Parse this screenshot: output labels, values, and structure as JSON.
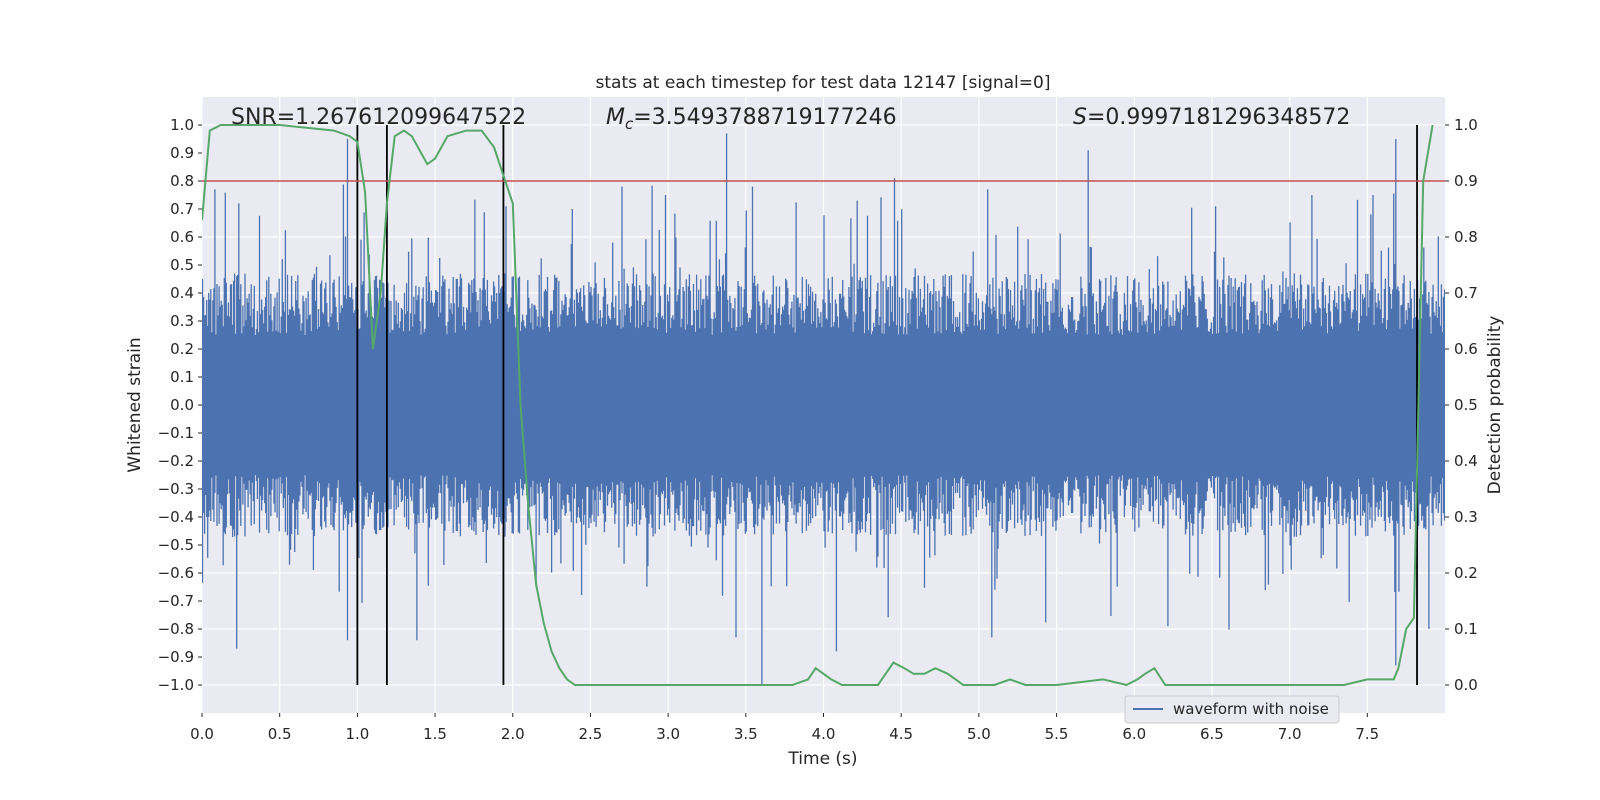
{
  "chart_data": {
    "type": "line",
    "title": "stats at each timestep for test data 12147 [signal=0]",
    "xlabel": "Time (s)",
    "ylabel_left": "Whitened strain",
    "ylabel_right": "Detection probability",
    "xlim": [
      0,
      8
    ],
    "ylim_left": [
      -1.1,
      1.1
    ],
    "ylim_right": [
      -0.05,
      1.05
    ],
    "grid": true,
    "x_ticks": [
      0.0,
      0.5,
      1.0,
      1.5,
      2.0,
      2.5,
      3.0,
      3.5,
      4.0,
      4.5,
      5.0,
      5.5,
      6.0,
      6.5,
      7.0,
      7.5
    ],
    "x_tick_labels": [
      "0.0",
      "0.5",
      "1.0",
      "1.5",
      "2.0",
      "2.5",
      "3.0",
      "3.5",
      "4.0",
      "4.5",
      "5.0",
      "5.5",
      "6.0",
      "6.5",
      "7.0",
      "7.5"
    ],
    "y_left_ticks": [
      1.0,
      0.9,
      0.8,
      0.7,
      0.6,
      0.5,
      0.4,
      0.3,
      0.2,
      0.1,
      0.0,
      -0.1,
      -0.2,
      -0.3,
      -0.4,
      -0.5,
      -0.6,
      -0.7,
      -0.8,
      -0.9,
      -1.0
    ],
    "y_left_tick_labels": [
      "1.0",
      "0.9",
      "0.8",
      "0.7",
      "0.6",
      "0.5",
      "0.4",
      "0.3",
      "0.2",
      "0.1",
      "0.0",
      "−0.1",
      "−0.2",
      "−0.3",
      "−0.4",
      "−0.5",
      "−0.6",
      "−0.7",
      "−0.8",
      "−0.9",
      "−1.0"
    ],
    "y_right_ticks": [
      1.0,
      0.9,
      0.8,
      0.7,
      0.6,
      0.5,
      0.4,
      0.3,
      0.2,
      0.1,
      0.0
    ],
    "y_right_tick_labels": [
      "1.0",
      "0.9",
      "0.8",
      "0.7",
      "0.6",
      "0.5",
      "0.4",
      "0.3",
      "0.2",
      "0.1",
      "0.0"
    ],
    "annotations": {
      "snr": "SNR=1.267612099647522",
      "mc_symbol": "M",
      "mc_subscript": "c",
      "mc_value": "=3.5493788719177246",
      "s_symbol": "S",
      "s_value": "=0.9997181296348572"
    },
    "threshold": {
      "value": 0.9,
      "axis": "right",
      "color": "#c44e52"
    },
    "vertical_markers": [
      1.0,
      1.19,
      1.94,
      7.82
    ],
    "waveform": {
      "name": "waveform with noise",
      "color": "#4c72b0",
      "n_samples": 1200,
      "typical_amplitude": 0.25,
      "max": 0.97,
      "min": -1.0,
      "peaks": [
        {
          "t": 0.08,
          "v": 0.77
        },
        {
          "t": 0.23,
          "v": 0.72
        },
        {
          "t": 0.93,
          "v": 0.95
        },
        {
          "t": 1.95,
          "v": 0.71
        },
        {
          "t": 2.38,
          "v": 0.7
        },
        {
          "t": 2.7,
          "v": 0.78
        },
        {
          "t": 2.98,
          "v": 0.75
        },
        {
          "t": 3.37,
          "v": 0.97
        },
        {
          "t": 3.54,
          "v": 0.78
        },
        {
          "t": 4.21,
          "v": 0.73
        },
        {
          "t": 4.45,
          "v": 0.81
        },
        {
          "t": 5.05,
          "v": 0.77
        },
        {
          "t": 5.7,
          "v": 0.91
        },
        {
          "t": 6.52,
          "v": 0.71
        },
        {
          "t": 7.14,
          "v": 0.75
        },
        {
          "t": 7.53,
          "v": 0.75
        },
        {
          "t": 7.68,
          "v": 0.95
        }
      ],
      "troughs": [
        {
          "t": 0.22,
          "v": -0.87
        },
        {
          "t": 0.93,
          "v": -0.84
        },
        {
          "t": 1.38,
          "v": -0.84
        },
        {
          "t": 3.6,
          "v": -1.0
        },
        {
          "t": 3.43,
          "v": -0.83
        },
        {
          "t": 4.08,
          "v": -0.88
        },
        {
          "t": 5.08,
          "v": -0.83
        },
        {
          "t": 6.21,
          "v": -0.79
        },
        {
          "t": 7.68,
          "v": -0.93
        },
        {
          "t": 7.89,
          "v": -0.8
        }
      ]
    },
    "probability": {
      "color": "#55a868",
      "x": [
        0.0,
        0.05,
        0.12,
        0.5,
        0.85,
        0.95,
        1.0,
        1.05,
        1.1,
        1.15,
        1.19,
        1.24,
        1.3,
        1.35,
        1.45,
        1.5,
        1.58,
        1.7,
        1.8,
        1.88,
        1.94,
        2.0,
        2.05,
        2.1,
        2.15,
        2.2,
        2.25,
        2.3,
        2.35,
        2.4,
        2.6,
        3.0,
        3.5,
        3.8,
        3.9,
        3.95,
        4.0,
        4.05,
        4.12,
        4.2,
        4.35,
        4.45,
        4.52,
        4.58,
        4.65,
        4.72,
        4.8,
        4.9,
        5.1,
        5.2,
        5.3,
        5.5,
        5.8,
        5.95,
        6.02,
        6.07,
        6.13,
        6.2,
        6.5,
        7.0,
        7.35,
        7.5,
        7.6,
        7.67,
        7.7,
        7.75,
        7.8,
        7.86,
        7.92
      ],
      "y": [
        0.83,
        0.99,
        1.0,
        1.0,
        0.99,
        0.98,
        0.97,
        0.88,
        0.6,
        0.7,
        0.86,
        0.98,
        0.99,
        0.98,
        0.93,
        0.94,
        0.98,
        0.99,
        0.99,
        0.96,
        0.91,
        0.86,
        0.5,
        0.32,
        0.18,
        0.11,
        0.06,
        0.03,
        0.01,
        0.0,
        0.0,
        0.0,
        0.0,
        0.0,
        0.01,
        0.03,
        0.02,
        0.01,
        0.0,
        0.0,
        0.0,
        0.04,
        0.03,
        0.02,
        0.02,
        0.03,
        0.02,
        0.0,
        0.0,
        0.01,
        0.0,
        0.0,
        0.01,
        0.0,
        0.01,
        0.02,
        0.03,
        0.0,
        0.0,
        0.0,
        0.0,
        0.01,
        0.01,
        0.01,
        0.03,
        0.1,
        0.12,
        0.9,
        1.0
      ]
    },
    "legend": {
      "label": "waveform with noise",
      "placement": "lower-right"
    }
  }
}
